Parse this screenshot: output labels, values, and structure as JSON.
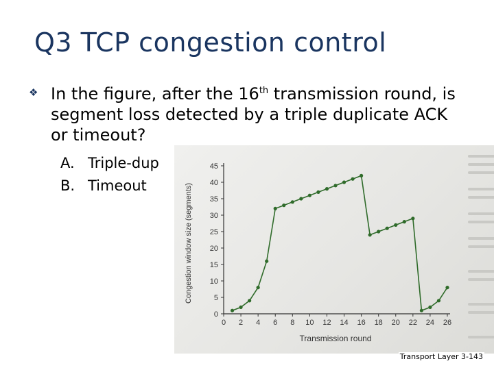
{
  "slide": {
    "title": "Q3 TCP congestion control",
    "bullet_icon": "diamond-bullet-icon",
    "question_part1": "In the figure, after the 16",
    "question_sup": "th",
    "question_part2": " transmission round, is segment loss detected by a triple duplicate ACK or timeout?",
    "options": [
      {
        "letter": "A.",
        "text": "Triple-dup"
      },
      {
        "letter": "B.",
        "text": "Timeout"
      }
    ],
    "footer": "Transport Layer 3-143"
  },
  "chart_data": {
    "type": "line",
    "xlabel": "Transmission round",
    "ylabel": "Congestion window size (segments)",
    "xticks": [
      0,
      2,
      4,
      6,
      8,
      10,
      12,
      14,
      16,
      18,
      20,
      22,
      24,
      26
    ],
    "yticks": [
      0,
      5,
      10,
      15,
      20,
      25,
      30,
      35,
      40,
      45
    ],
    "xlim": [
      0,
      26
    ],
    "ylim": [
      0,
      45
    ],
    "grid": false,
    "color": "#2f6b2a",
    "series": [
      {
        "x": [
          1,
          2,
          3,
          4,
          5,
          6,
          7,
          8,
          9,
          10,
          11,
          12,
          13,
          14,
          15,
          16,
          17,
          18,
          19,
          20,
          21,
          22,
          23,
          24,
          25,
          26
        ],
        "y": [
          1,
          2,
          4,
          8,
          16,
          32,
          33,
          34,
          35,
          36,
          37,
          38,
          39,
          40,
          41,
          42,
          24,
          25,
          26,
          27,
          28,
          29,
          1,
          2,
          4,
          8
        ]
      }
    ]
  }
}
